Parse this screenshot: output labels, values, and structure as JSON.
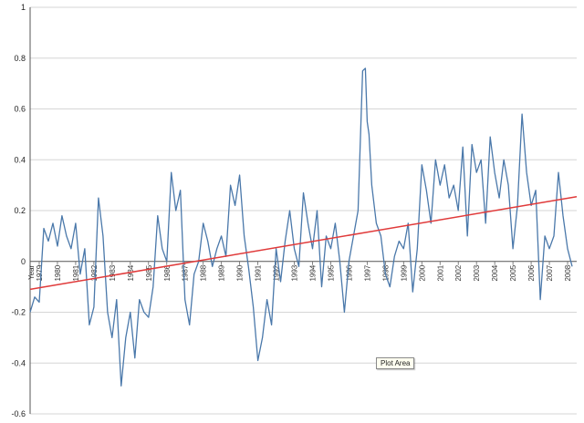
{
  "chart_data": {
    "type": "line",
    "title": "",
    "xlabel": "Year",
    "ylabel": "",
    "ylim": [
      -0.6,
      1.0
    ],
    "xlim": [
      1979,
      2009
    ],
    "yticks": [
      "1",
      "0.8",
      "0.6",
      "0.4",
      "0.2",
      "0",
      "-0.2",
      "-0.4",
      "-0.6"
    ],
    "ytick_values": [
      1,
      0.8,
      0.6,
      0.4,
      0.2,
      0,
      -0.2,
      -0.4,
      -0.6
    ],
    "xticks": [
      "1979",
      "1980",
      "1981",
      "1982",
      "1983",
      "1984",
      "1985",
      "1986",
      "1987",
      "1988",
      "1989",
      "1990",
      "1991",
      "1992",
      "1993",
      "1994",
      "1995",
      "1996",
      "1997",
      "1998",
      "1999",
      "2000",
      "2001",
      "2002",
      "2003",
      "2004",
      "2005",
      "2006",
      "2007",
      "2008"
    ],
    "grid": "horizontal",
    "legend": "none",
    "series": [
      {
        "color": "#4a78aa",
        "x": [
          1979.0,
          1979.25,
          1979.5,
          1979.75,
          1980.0,
          1980.25,
          1980.5,
          1980.75,
          1981.0,
          1981.25,
          1981.5,
          1981.75,
          1982.0,
          1982.25,
          1982.5,
          1982.75,
          1983.0,
          1983.25,
          1983.5,
          1983.75,
          1984.0,
          1984.25,
          1984.5,
          1984.75,
          1985.0,
          1985.25,
          1985.5,
          1985.75,
          1986.0,
          1986.25,
          1986.5,
          1986.75,
          1987.0,
          1987.25,
          1987.5,
          1987.75,
          1988.0,
          1988.25,
          1988.5,
          1988.75,
          1989.0,
          1989.25,
          1989.5,
          1989.75,
          1990.0,
          1990.25,
          1990.5,
          1990.75,
          1991.0,
          1991.25,
          1991.5,
          1991.75,
          1992.0,
          1992.25,
          1992.5,
          1992.75,
          1993.0,
          1993.25,
          1993.5,
          1993.75,
          1994.0,
          1994.25,
          1994.5,
          1994.75,
          1995.0,
          1995.25,
          1995.5,
          1995.75,
          1996.0,
          1996.25,
          1996.5,
          1996.75,
          1997.0,
          1997.25,
          1997.4,
          1997.5,
          1997.6,
          1997.75,
          1998.0,
          1998.25,
          1998.5,
          1998.75,
          1999.0,
          1999.25,
          1999.5,
          1999.75,
          2000.0,
          2000.25,
          2000.5,
          2000.75,
          2001.0,
          2001.25,
          2001.5,
          2001.75,
          2002.0,
          2002.25,
          2002.5,
          2002.75,
          2003.0,
          2003.25,
          2003.5,
          2003.75,
          2004.0,
          2004.25,
          2004.5,
          2004.75,
          2005.0,
          2005.25,
          2005.5,
          2005.75,
          2006.0,
          2006.25,
          2006.5,
          2006.75,
          2007.0,
          2007.25,
          2007.5,
          2007.75,
          2008.0,
          2008.25,
          2008.5,
          2008.75
        ],
        "y": [
          -0.2,
          -0.14,
          -0.16,
          0.13,
          0.08,
          0.15,
          0.06,
          0.18,
          0.1,
          0.05,
          0.15,
          -0.05,
          0.05,
          -0.25,
          -0.18,
          0.25,
          0.1,
          -0.2,
          -0.3,
          -0.15,
          -0.49,
          -0.3,
          -0.2,
          -0.38,
          -0.15,
          -0.2,
          -0.22,
          -0.1,
          0.18,
          0.05,
          0.0,
          0.35,
          0.2,
          0.28,
          -0.15,
          -0.25,
          -0.05,
          0.0,
          0.15,
          0.08,
          -0.02,
          0.05,
          0.1,
          0.02,
          0.3,
          0.22,
          0.34,
          0.1,
          -0.03,
          -0.18,
          -0.39,
          -0.3,
          -0.15,
          -0.25,
          0.05,
          -0.08,
          0.08,
          0.2,
          0.05,
          -0.02,
          0.27,
          0.15,
          0.05,
          0.2,
          -0.1,
          0.1,
          0.05,
          0.15,
          0.0,
          -0.2,
          0.0,
          0.1,
          0.2,
          0.75,
          0.76,
          0.55,
          0.5,
          0.3,
          0.15,
          0.1,
          -0.05,
          -0.1,
          0.02,
          0.08,
          0.05,
          0.15,
          -0.12,
          0.05,
          0.38,
          0.28,
          0.15,
          0.4,
          0.3,
          0.38,
          0.25,
          0.3,
          0.2,
          0.45,
          0.1,
          0.46,
          0.35,
          0.4,
          0.15,
          0.49,
          0.35,
          0.25,
          0.4,
          0.3,
          0.05,
          0.22,
          0.58,
          0.35,
          0.22,
          0.28,
          -0.15,
          0.1,
          0.05,
          0.1,
          0.35,
          0.18,
          0.05,
          -0.02
        ]
      },
      {
        "color": "#e03a3a",
        "x": [
          1979,
          2009
        ],
        "y": [
          -0.11,
          0.255
        ]
      }
    ]
  },
  "tooltip": "Plot Area"
}
